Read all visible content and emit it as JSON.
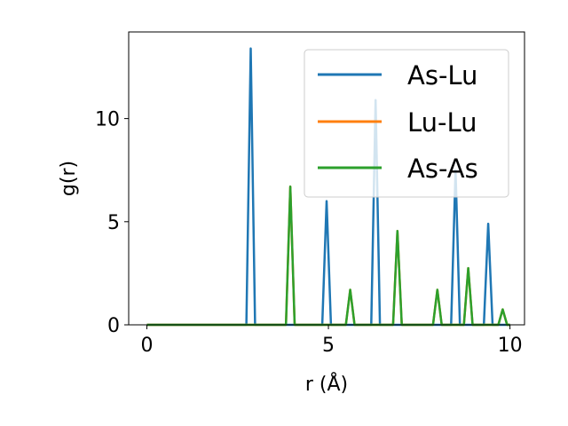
{
  "chart_data": {
    "type": "line",
    "xlabel": "r (Å)",
    "ylabel": "g(r)",
    "xlim": [
      -0.5,
      10.4
    ],
    "ylim": [
      0,
      14.2
    ],
    "xticks": [
      0,
      5,
      10
    ],
    "yticks": [
      0,
      5,
      10
    ],
    "grid": false,
    "legend_position": "top-right",
    "series": [
      {
        "name": "As-Lu",
        "color": "#1f77b4",
        "x": [
          0,
          2.72,
          2.8,
          2.86,
          2.92,
          2.98,
          10
        ],
        "y": [
          0,
          0,
          6.5,
          13.4,
          6.5,
          0,
          0
        ],
        "peaks": [
          [
            2.86,
            13.4
          ],
          [
            4.95,
            6.0
          ],
          [
            6.3,
            10.9
          ],
          [
            8.5,
            7.5
          ],
          [
            9.4,
            4.9
          ]
        ]
      },
      {
        "name": "Lu-Lu",
        "color": "#ff7f0e",
        "peaks": [
          [
            3.95,
            6.7
          ],
          [
            5.6,
            1.7
          ],
          [
            6.9,
            4.55
          ],
          [
            8.0,
            1.7
          ],
          [
            8.85,
            2.75
          ],
          [
            9.8,
            0.75
          ]
        ]
      },
      {
        "name": "As-As",
        "color": "#2ca02c",
        "peaks": [
          [
            3.95,
            6.7
          ],
          [
            5.6,
            1.7
          ],
          [
            6.9,
            4.55
          ],
          [
            8.0,
            1.7
          ],
          [
            8.85,
            2.75
          ],
          [
            9.8,
            0.75
          ]
        ]
      }
    ]
  }
}
